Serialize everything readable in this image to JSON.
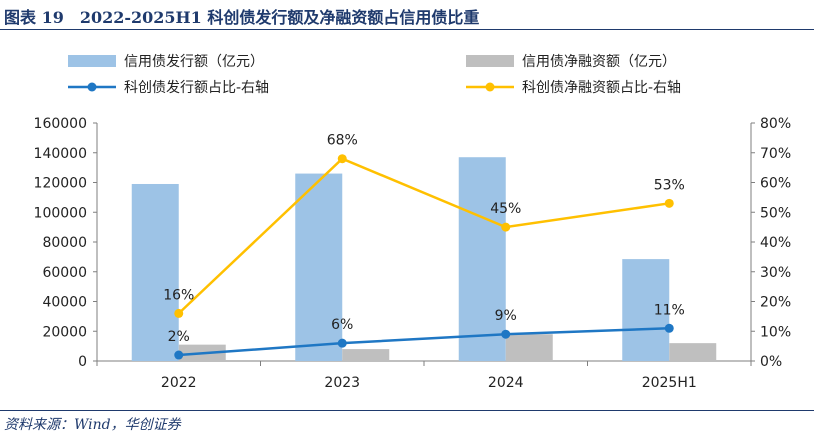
{
  "header": {
    "title": "图表 19　2022-2025H1 科创债发行额及净融资额占信用债比重"
  },
  "footer": {
    "source": "资料来源：Wind，华创证券"
  },
  "chart_data": {
    "type": "bar",
    "categories": [
      "2022",
      "2023",
      "2024",
      "2025H1"
    ],
    "series": [
      {
        "name": "信用债发行额（亿元）",
        "kind": "bar",
        "axis": "left",
        "color": "#9dc3e6",
        "values": [
          119000,
          126000,
          137000,
          68500
        ]
      },
      {
        "name": "信用债净融资额（亿元）",
        "kind": "bar",
        "axis": "left",
        "color": "#bfbfbf",
        "values": [
          11000,
          8000,
          18000,
          12000
        ]
      },
      {
        "name": "科创债发行额占比-右轴",
        "kind": "line",
        "axis": "right",
        "color": "#1f77c4",
        "values": [
          2,
          6,
          9,
          11
        ],
        "labels": [
          "2%",
          "6%",
          "9%",
          "11%"
        ]
      },
      {
        "name": "科创债净融资额占比-右轴",
        "kind": "line",
        "axis": "right",
        "color": "#ffc000",
        "values": [
          16,
          68,
          45,
          53
        ],
        "labels": [
          "16%",
          "68%",
          "45%",
          "53%"
        ]
      }
    ],
    "y_left": {
      "min": 0,
      "max": 160000,
      "step": 20000,
      "ticks": [
        "0",
        "20000",
        "40000",
        "60000",
        "80000",
        "100000",
        "120000",
        "140000",
        "160000"
      ]
    },
    "y_right": {
      "min": 0,
      "max": 80,
      "step": 10,
      "ticks": [
        "0%",
        "10%",
        "20%",
        "30%",
        "40%",
        "50%",
        "60%",
        "70%",
        "80%"
      ]
    },
    "grid": false,
    "legend_position": "top"
  }
}
